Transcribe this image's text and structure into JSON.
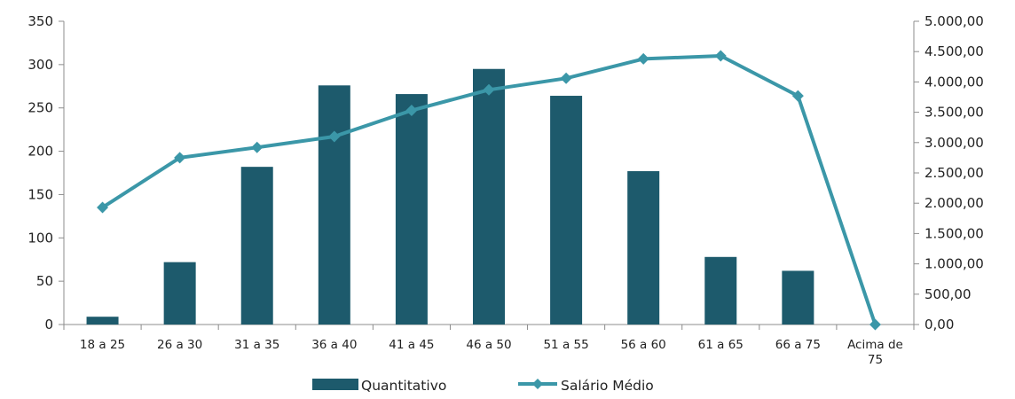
{
  "chart_data": {
    "type": "bar+line",
    "categories": [
      "18 a 25",
      "26 a 30",
      "31 a 35",
      "36 a 40",
      "41 a 45",
      "46 a 50",
      "51 a 55",
      "56 a 60",
      "61 a 65",
      "66 a 75",
      "Acima de 75"
    ],
    "category_lines": [
      [
        "18 a 25"
      ],
      [
        "26 a 30"
      ],
      [
        "31 a 35"
      ],
      [
        "36 a 40"
      ],
      [
        "41 a 45"
      ],
      [
        "46 a 50"
      ],
      [
        "51 a 55"
      ],
      [
        "56 a 60"
      ],
      [
        "61 a 65"
      ],
      [
        "66 a 75"
      ],
      [
        "Acima de",
        "75"
      ]
    ],
    "series": [
      {
        "name": "Quantitativo",
        "type": "bar",
        "axis": "left",
        "color": "#1d5a6c",
        "values": [
          9,
          72,
          182,
          276,
          266,
          295,
          264,
          177,
          78,
          62,
          0
        ]
      },
      {
        "name": "Salário Médio",
        "type": "line",
        "axis": "right",
        "color": "#3b97a8",
        "values": [
          1930,
          2750,
          2920,
          3100,
          3530,
          3870,
          4060,
          4380,
          4430,
          3770,
          0
        ]
      }
    ],
    "y_left": {
      "min": 0,
      "max": 350,
      "ticks": [
        "0",
        "50",
        "100",
        "150",
        "200",
        "250",
        "300",
        "350"
      ]
    },
    "y_right": {
      "min": 0,
      "max": 5000,
      "ticks": [
        "0,00",
        "500,00",
        "1.000,00",
        "1.500,00",
        "2.000,00",
        "2.500,00",
        "3.000,00",
        "3.500,00",
        "4.000,00",
        "4.500,00",
        "5.000,00"
      ]
    },
    "legend_position": "bottom",
    "grid": false
  }
}
